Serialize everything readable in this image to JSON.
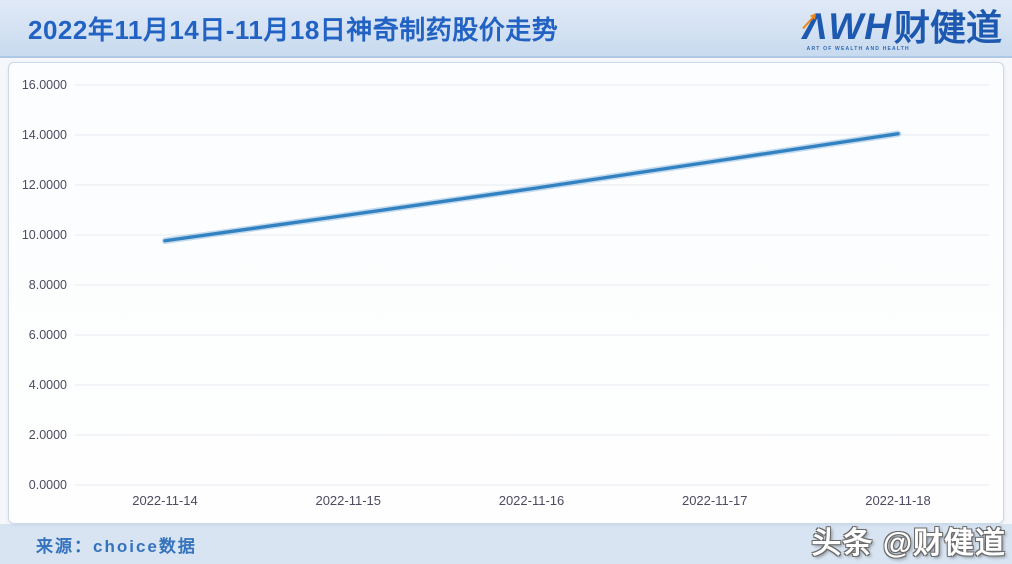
{
  "header": {
    "title": "2022年11月14日-11月18日神奇制药股价走势",
    "logo": {
      "wordmark": "ΛWH",
      "tagline": "ART OF WEALTH AND HEALTH",
      "brand": "财健道",
      "brand_color": "#1d59b0",
      "accent_color": "#ee8a1c"
    }
  },
  "chart_data": {
    "type": "line",
    "title": "2022年11月14日-11月18日神奇制药股价走势",
    "categories": [
      "2022-11-14",
      "2022-11-15",
      "2022-11-16",
      "2022-11-17",
      "2022-11-18"
    ],
    "series": [
      {
        "name": "神奇制药股价",
        "values": [
          9.77,
          10.8,
          11.85,
          12.95,
          14.05
        ],
        "color": "#3282c2"
      }
    ],
    "xlabel": "",
    "ylabel": "",
    "ylim": [
      0,
      16
    ],
    "ytick_step": 2,
    "ytick_decimals": 4,
    "grid": true,
    "grid_color": "#e7eaf0",
    "tick_label_color": "#4d4a61",
    "legend": "none"
  },
  "footer": {
    "source": "来源：choice数据",
    "watermark": "头条 @财健道"
  }
}
